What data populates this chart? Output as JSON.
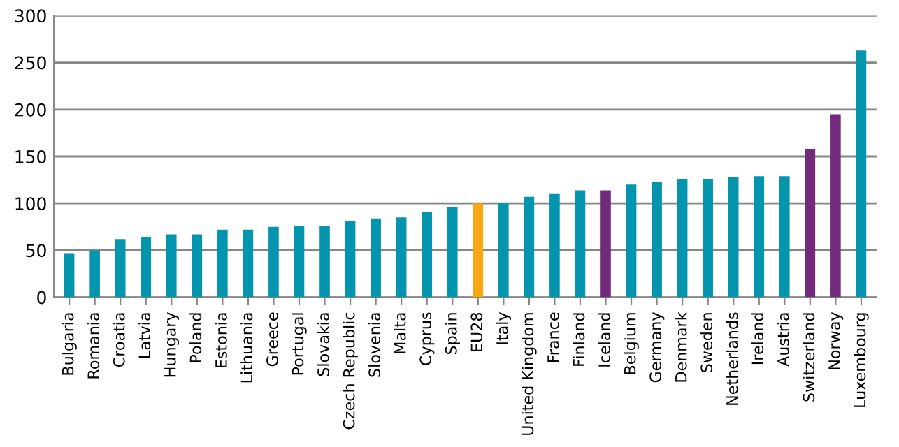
{
  "chart_data": {
    "type": "bar",
    "categories": [
      "Bulgaria",
      "Romania",
      "Croatia",
      "Latvia",
      "Hungary",
      "Poland",
      "Estonia",
      "Lithuania",
      "Greece",
      "Portugal",
      "Slovakia",
      "Czech Republic",
      "Slovenia",
      "Malta",
      "Cyprus",
      "Spain",
      "EU28",
      "Italy",
      "United Kingdom",
      "France",
      "Finland",
      "Iceland",
      "Belgium",
      "Germany",
      "Denmark",
      "Sweden",
      "Netherlands",
      "Ireland",
      "Austria",
      "Switzerland",
      "Norway",
      "Luxembourg"
    ],
    "values": [
      47,
      50,
      62,
      64,
      67,
      67,
      72,
      72,
      75,
      76,
      76,
      81,
      84,
      85,
      91,
      96,
      100,
      100,
      107,
      110,
      114,
      114,
      120,
      123,
      126,
      126,
      128,
      129,
      129,
      158,
      195,
      263
    ],
    "colors": [
      "#0394ae",
      "#0394ae",
      "#0394ae",
      "#0394ae",
      "#0394ae",
      "#0394ae",
      "#0394ae",
      "#0394ae",
      "#0394ae",
      "#0394ae",
      "#0394ae",
      "#0394ae",
      "#0394ae",
      "#0394ae",
      "#0394ae",
      "#0394ae",
      "#f9a612",
      "#0394ae",
      "#0394ae",
      "#0394ae",
      "#0394ae",
      "#722b7b",
      "#0394ae",
      "#0394ae",
      "#0394ae",
      "#0394ae",
      "#0394ae",
      "#0394ae",
      "#0394ae",
      "#722b7b",
      "#722b7b",
      "#0394ae"
    ],
    "ylim": [
      0,
      300
    ],
    "yticks": [
      0,
      50,
      100,
      150,
      200,
      250,
      300
    ],
    "grid": "y",
    "legend": false
  }
}
